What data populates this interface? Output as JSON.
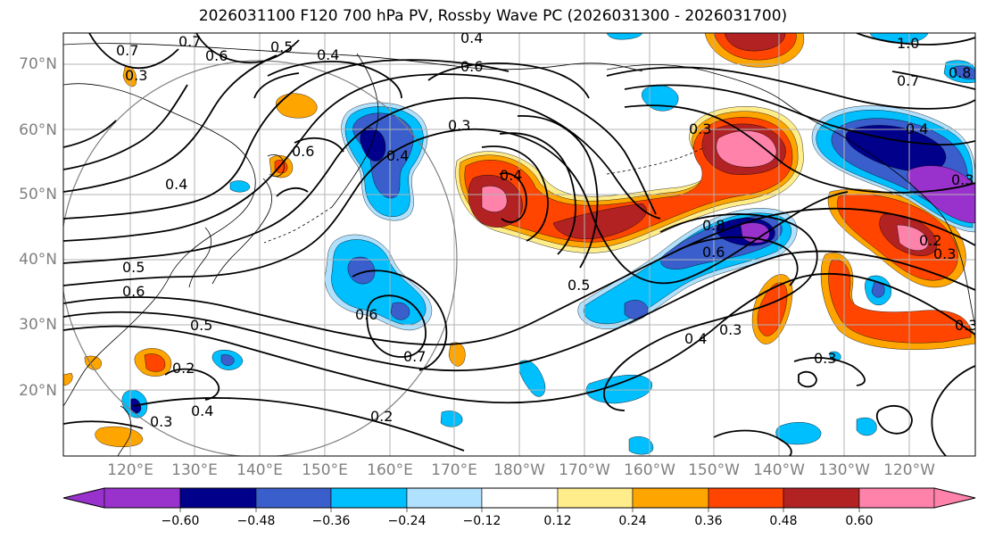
{
  "title": "2026031100 F120 700 hPa PV, Rossby Wave PC (2026031300 - 2026031700)",
  "lat_labels": [
    "70°N",
    "60°N",
    "50°N",
    "40°N",
    "30°N",
    "20°N"
  ],
  "lon_labels": [
    "120°E",
    "130°E",
    "140°E",
    "150°E",
    "160°E",
    "170°E",
    "180°W",
    "170°W",
    "160°W",
    "150°W",
    "140°W",
    "130°W",
    "120°W"
  ],
  "colorbar": {
    "ticks": [
      "−0.60",
      "−0.48",
      "−0.36",
      "−0.24",
      "−0.12",
      "0.12",
      "0.24",
      "0.36",
      "0.48",
      "0.60"
    ],
    "colors": [
      "#9932cc",
      "#00008b",
      "#3a5fcd",
      "#00bfff",
      "#b0e2ff",
      "#ffffff",
      "#ffec8b",
      "#ffa500",
      "#ff4500",
      "#b22222",
      "#ff82ab"
    ]
  },
  "contour_labels": [
    "0.7",
    "0.6",
    "0.5",
    "0.4",
    "0.4",
    "0.6",
    "1.0",
    "0.8",
    "0.7",
    "0.4",
    "0.3",
    "0.6",
    "0.3",
    "0.4",
    "0.3",
    "0.3",
    "0.8",
    "0.6",
    "0.5",
    "0.3",
    "0.4",
    "0.3",
    "0.5",
    "0.6",
    "0.7",
    "0.2",
    "0.4",
    "0.3",
    "0.2",
    "0.6",
    "0.5",
    "0.7",
    "0.3",
    "0.4",
    "0.3",
    "0.4",
    "0.2"
  ]
}
